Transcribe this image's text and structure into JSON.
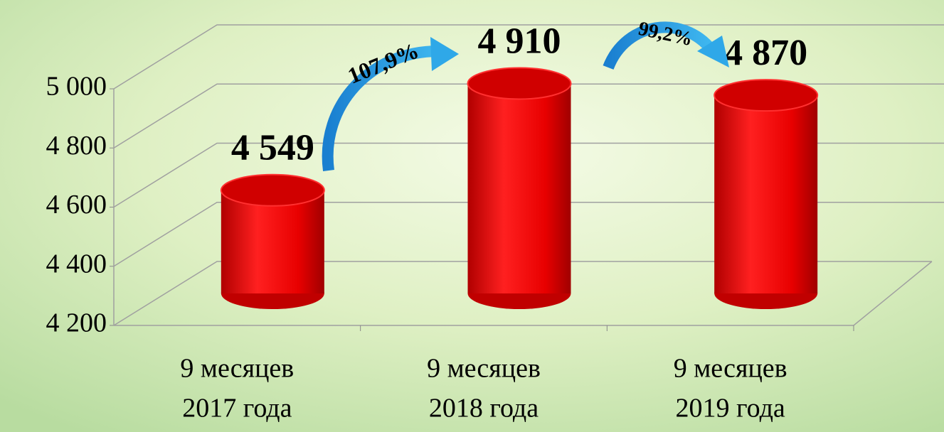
{
  "chart_data": {
    "type": "bar3d",
    "categories": [
      [
        "9 месяцев",
        "2017 года"
      ],
      [
        "9 месяцев",
        "2018 года"
      ],
      [
        "9 месяцев",
        "2019 года"
      ]
    ],
    "values": [
      4549,
      4910,
      4870
    ],
    "value_labels": [
      "4 549",
      "4 910",
      "4 870"
    ],
    "color": "#ff0000",
    "ylim": [
      4200,
      5000
    ],
    "yticks": [
      {
        "value": 4200,
        "label": "4 200"
      },
      {
        "value": 4400,
        "label": "4 400"
      },
      {
        "value": 4600,
        "label": "4 600"
      },
      {
        "value": 4800,
        "label": "4 800"
      },
      {
        "value": 5000,
        "label": "5 000"
      }
    ],
    "grid": true,
    "annotations": [
      {
        "text": "107,9%"
      },
      {
        "text": "99,2%"
      }
    ]
  }
}
